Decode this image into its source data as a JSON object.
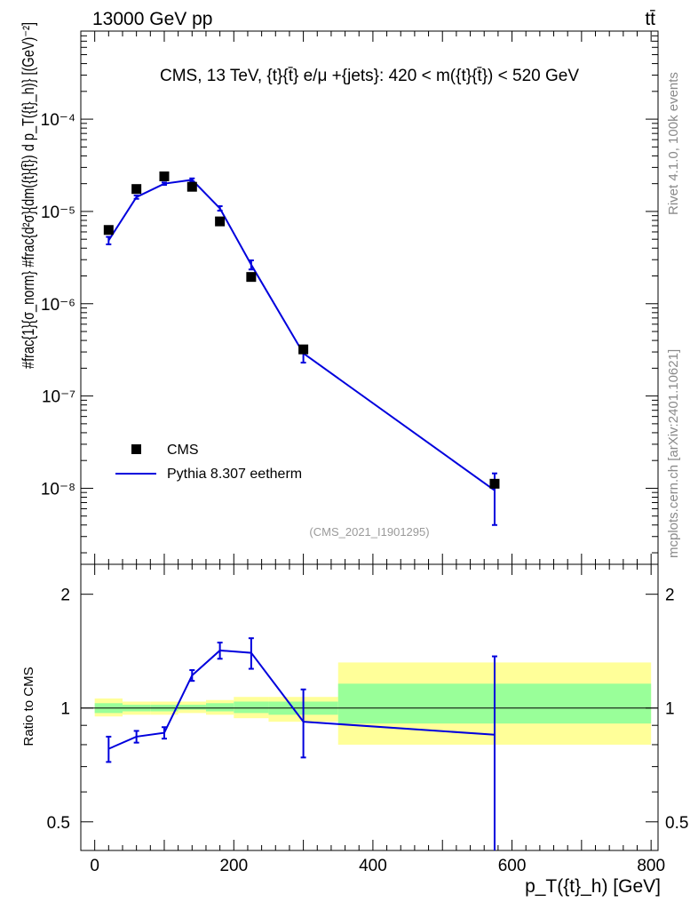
{
  "header": {
    "beam": "13000 GeV pp",
    "process": "tt̄",
    "title": "CMS, 13 TeV, {t}{t̄} e/μ +{jets}: 420 < m({t}{t̄}) < 520 GeV",
    "rivet": "Rivet 4.1.0,  100k events",
    "mcplots": "mcplots.cern.ch [arXiv:2401.10621]",
    "analysis": "(CMS_2021_I1901295)"
  },
  "colors": {
    "mc": "#0000dd",
    "data": "#000000",
    "band_outer": "#ffff99",
    "band_inner": "#99ff99"
  },
  "chart_data": [
    {
      "type": "scatter",
      "panel": "main",
      "ylabel": "#frac{1}{σ_norm} #frac{d²σ}{dm({t}{t̄}) d p_T({t}_h)} [(GeV)⁻²]",
      "yscale": "log",
      "ylim": [
        1.5e-09,
        0.0009
      ],
      "xlim": [
        -20,
        810
      ],
      "ytick_labels": [
        "10⁻⁸",
        "10⁻⁷",
        "10⁻⁶",
        "10⁻⁵",
        "10⁻⁴"
      ],
      "legend": [
        "CMS",
        "Pythia 8.307 eetherm"
      ],
      "series": [
        {
          "name": "CMS",
          "x": [
            20,
            60,
            100,
            140,
            180,
            225,
            300,
            575
          ],
          "y": [
            6.3e-06,
            1.75e-05,
            2.4e-05,
            1.85e-05,
            7.8e-06,
            1.95e-06,
            3.2e-07,
            1.12e-08
          ]
        },
        {
          "name": "Pythia 8.307 eetherm",
          "x": [
            20,
            60,
            100,
            140,
            180,
            225,
            300,
            575
          ],
          "y": [
            4.85e-06,
            1.43e-05,
            2e-05,
            2.2e-05,
            1.08e-05,
            2.65e-06,
            2.9e-07,
            9.5e-09
          ],
          "err_lo": [
            4.4e-06,
            1.37e-05,
            1.94e-05,
            2.12e-05,
            1.02e-05,
            2.35e-06,
            2.3e-07,
            4e-09
          ],
          "err_hi": [
            5.3e-06,
            1.49e-05,
            2.06e-05,
            2.28e-05,
            1.14e-05,
            2.95e-06,
            3.5e-07,
            1.45e-08
          ]
        }
      ]
    },
    {
      "type": "line",
      "panel": "ratio",
      "ylabel": "Ratio to CMS",
      "xlabel": "p_T({t}_h) [GeV]",
      "ylim": [
        0.42,
        2.4
      ],
      "xlim": [
        -20,
        810
      ],
      "xtick_labels": [
        "0",
        "200",
        "400",
        "600",
        "800"
      ],
      "ytick_labels": [
        "0.5",
        "1",
        "2"
      ],
      "x": [
        20,
        60,
        100,
        140,
        180,
        225,
        300,
        575
      ],
      "y": [
        0.78,
        0.84,
        0.86,
        1.22,
        1.42,
        1.4,
        0.92,
        0.85
      ],
      "err_lo": [
        0.72,
        0.81,
        0.83,
        1.18,
        1.35,
        1.27,
        0.74,
        0.38
      ],
      "err_hi": [
        0.84,
        0.87,
        0.89,
        1.26,
        1.49,
        1.53,
        1.12,
        1.37
      ],
      "bands": {
        "bins": [
          [
            0,
            40
          ],
          [
            40,
            80
          ],
          [
            80,
            120
          ],
          [
            120,
            160
          ],
          [
            160,
            200
          ],
          [
            200,
            250
          ],
          [
            250,
            350
          ],
          [
            350,
            800
          ]
        ],
        "outer_lo": [
          0.95,
          0.96,
          0.96,
          0.97,
          0.96,
          0.94,
          0.92,
          0.8
        ],
        "outer_hi": [
          1.06,
          1.04,
          1.04,
          1.04,
          1.05,
          1.07,
          1.07,
          1.32
        ],
        "inner_lo": [
          0.97,
          0.98,
          0.98,
          0.99,
          0.98,
          0.97,
          0.96,
          0.91
        ],
        "inner_hi": [
          1.03,
          1.02,
          1.02,
          1.02,
          1.03,
          1.04,
          1.04,
          1.16
        ]
      }
    }
  ]
}
